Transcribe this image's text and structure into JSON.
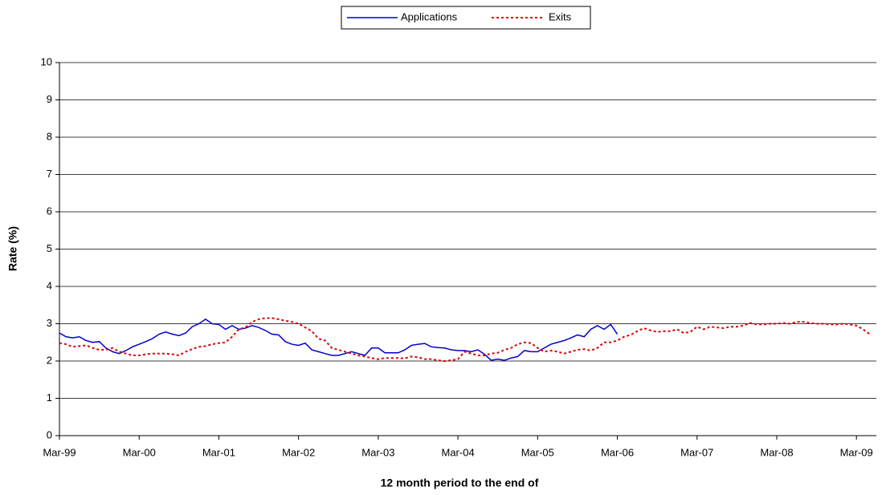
{
  "chart_data": {
    "type": "line",
    "x_label": "12 month period to the end of",
    "y_label": "Rate (%)",
    "categories": [
      "Mar-99",
      null,
      null,
      null,
      null,
      null,
      null,
      null,
      null,
      null,
      null,
      null,
      "Mar-00",
      null,
      null,
      null,
      null,
      null,
      null,
      null,
      null,
      null,
      null,
      null,
      "Mar-01",
      null,
      null,
      null,
      null,
      null,
      null,
      null,
      null,
      null,
      null,
      null,
      "Mar-02",
      null,
      null,
      null,
      null,
      null,
      null,
      null,
      null,
      null,
      null,
      null,
      "Mar-03",
      null,
      null,
      null,
      null,
      null,
      null,
      null,
      null,
      null,
      null,
      null,
      "Mar-04",
      null,
      null,
      null,
      null,
      null,
      null,
      null,
      null,
      null,
      null,
      null,
      "Mar-05",
      null,
      null,
      null,
      null,
      null,
      null,
      null,
      null,
      null,
      null,
      null,
      "Mar-06",
      null,
      null,
      null,
      null,
      null,
      null,
      null,
      null,
      null,
      null,
      null,
      "Mar-07",
      null,
      null,
      null,
      null,
      null,
      null,
      null,
      null,
      null,
      null,
      null,
      "Mar-08",
      null,
      null,
      null,
      null,
      null,
      null,
      null,
      null,
      null,
      null,
      null,
      "Mar-09",
      null,
      null,
      null
    ],
    "series": [
      {
        "name": "Applications",
        "color": "#0000cc",
        "dash": false,
        "values": [
          2.75,
          2.65,
          2.62,
          2.65,
          2.55,
          2.5,
          2.52,
          2.35,
          2.25,
          2.2,
          2.28,
          2.38,
          2.45,
          2.52,
          2.6,
          2.72,
          2.78,
          2.72,
          2.68,
          2.75,
          2.92,
          3.0,
          3.12,
          3.0,
          2.98,
          2.85,
          2.95,
          2.85,
          2.88,
          2.95,
          2.9,
          2.82,
          2.72,
          2.7,
          2.52,
          2.45,
          2.42,
          2.48,
          2.3,
          2.25,
          2.2,
          2.15,
          2.15,
          2.2,
          2.25,
          2.2,
          2.15,
          2.35,
          2.35,
          2.22,
          2.22,
          2.22,
          2.3,
          2.42,
          2.45,
          2.47,
          2.38,
          2.36,
          2.35,
          2.3,
          2.28,
          2.28,
          2.25,
          2.3,
          2.18,
          2.02,
          2.05,
          2.02,
          2.08,
          2.12,
          2.28,
          2.25,
          2.25,
          2.35,
          2.45,
          2.5,
          2.55,
          2.62,
          2.7,
          2.65,
          2.85,
          2.95,
          2.85,
          2.98,
          2.72,
          null,
          null,
          null,
          null,
          null,
          null,
          null,
          null,
          null,
          null,
          null,
          null,
          null,
          null,
          null,
          null,
          null,
          null,
          null,
          null,
          null,
          null,
          null,
          null,
          null,
          null,
          null,
          null,
          null,
          null,
          null,
          null,
          null,
          null,
          null,
          null,
          null,
          null,
          null
        ]
      },
      {
        "name": "Exits",
        "color": "#dd0000",
        "dash": true,
        "values": [
          2.48,
          2.45,
          2.38,
          2.4,
          2.42,
          2.35,
          2.3,
          2.3,
          2.35,
          2.25,
          2.2,
          2.15,
          2.15,
          2.18,
          2.2,
          2.2,
          2.2,
          2.18,
          2.15,
          2.25,
          2.32,
          2.38,
          2.4,
          2.45,
          2.48,
          2.5,
          2.65,
          2.85,
          2.9,
          3.05,
          3.12,
          3.15,
          3.15,
          3.12,
          3.08,
          3.05,
          3.0,
          2.9,
          2.8,
          2.6,
          2.55,
          2.35,
          2.3,
          2.25,
          2.2,
          2.15,
          2.12,
          2.08,
          2.05,
          2.08,
          2.08,
          2.08,
          2.07,
          2.12,
          2.1,
          2.05,
          2.05,
          2.02,
          2.0,
          2.02,
          2.05,
          2.25,
          2.2,
          2.15,
          2.15,
          2.2,
          2.22,
          2.3,
          2.35,
          2.45,
          2.5,
          2.48,
          2.35,
          2.25,
          2.28,
          2.25,
          2.2,
          2.25,
          2.3,
          2.32,
          2.28,
          2.35,
          2.5,
          2.5,
          2.55,
          2.65,
          2.7,
          2.8,
          2.88,
          2.82,
          2.78,
          2.8,
          2.8,
          2.85,
          2.75,
          2.78,
          2.92,
          2.85,
          2.92,
          2.9,
          2.88,
          2.92,
          2.92,
          2.95,
          3.02,
          2.98,
          2.98,
          3.0,
          3.0,
          3.02,
          3.0,
          3.05,
          3.05,
          3.02,
          3.0,
          3.0,
          2.98,
          2.98,
          3.0,
          2.98,
          2.95,
          2.85,
          2.72,
          null
        ]
      }
    ],
    "ylim": [
      0,
      10
    ],
    "yticks": [
      0,
      1,
      2,
      3,
      4,
      5,
      6,
      7,
      8,
      9,
      10
    ],
    "grid": true,
    "legend": "top"
  }
}
